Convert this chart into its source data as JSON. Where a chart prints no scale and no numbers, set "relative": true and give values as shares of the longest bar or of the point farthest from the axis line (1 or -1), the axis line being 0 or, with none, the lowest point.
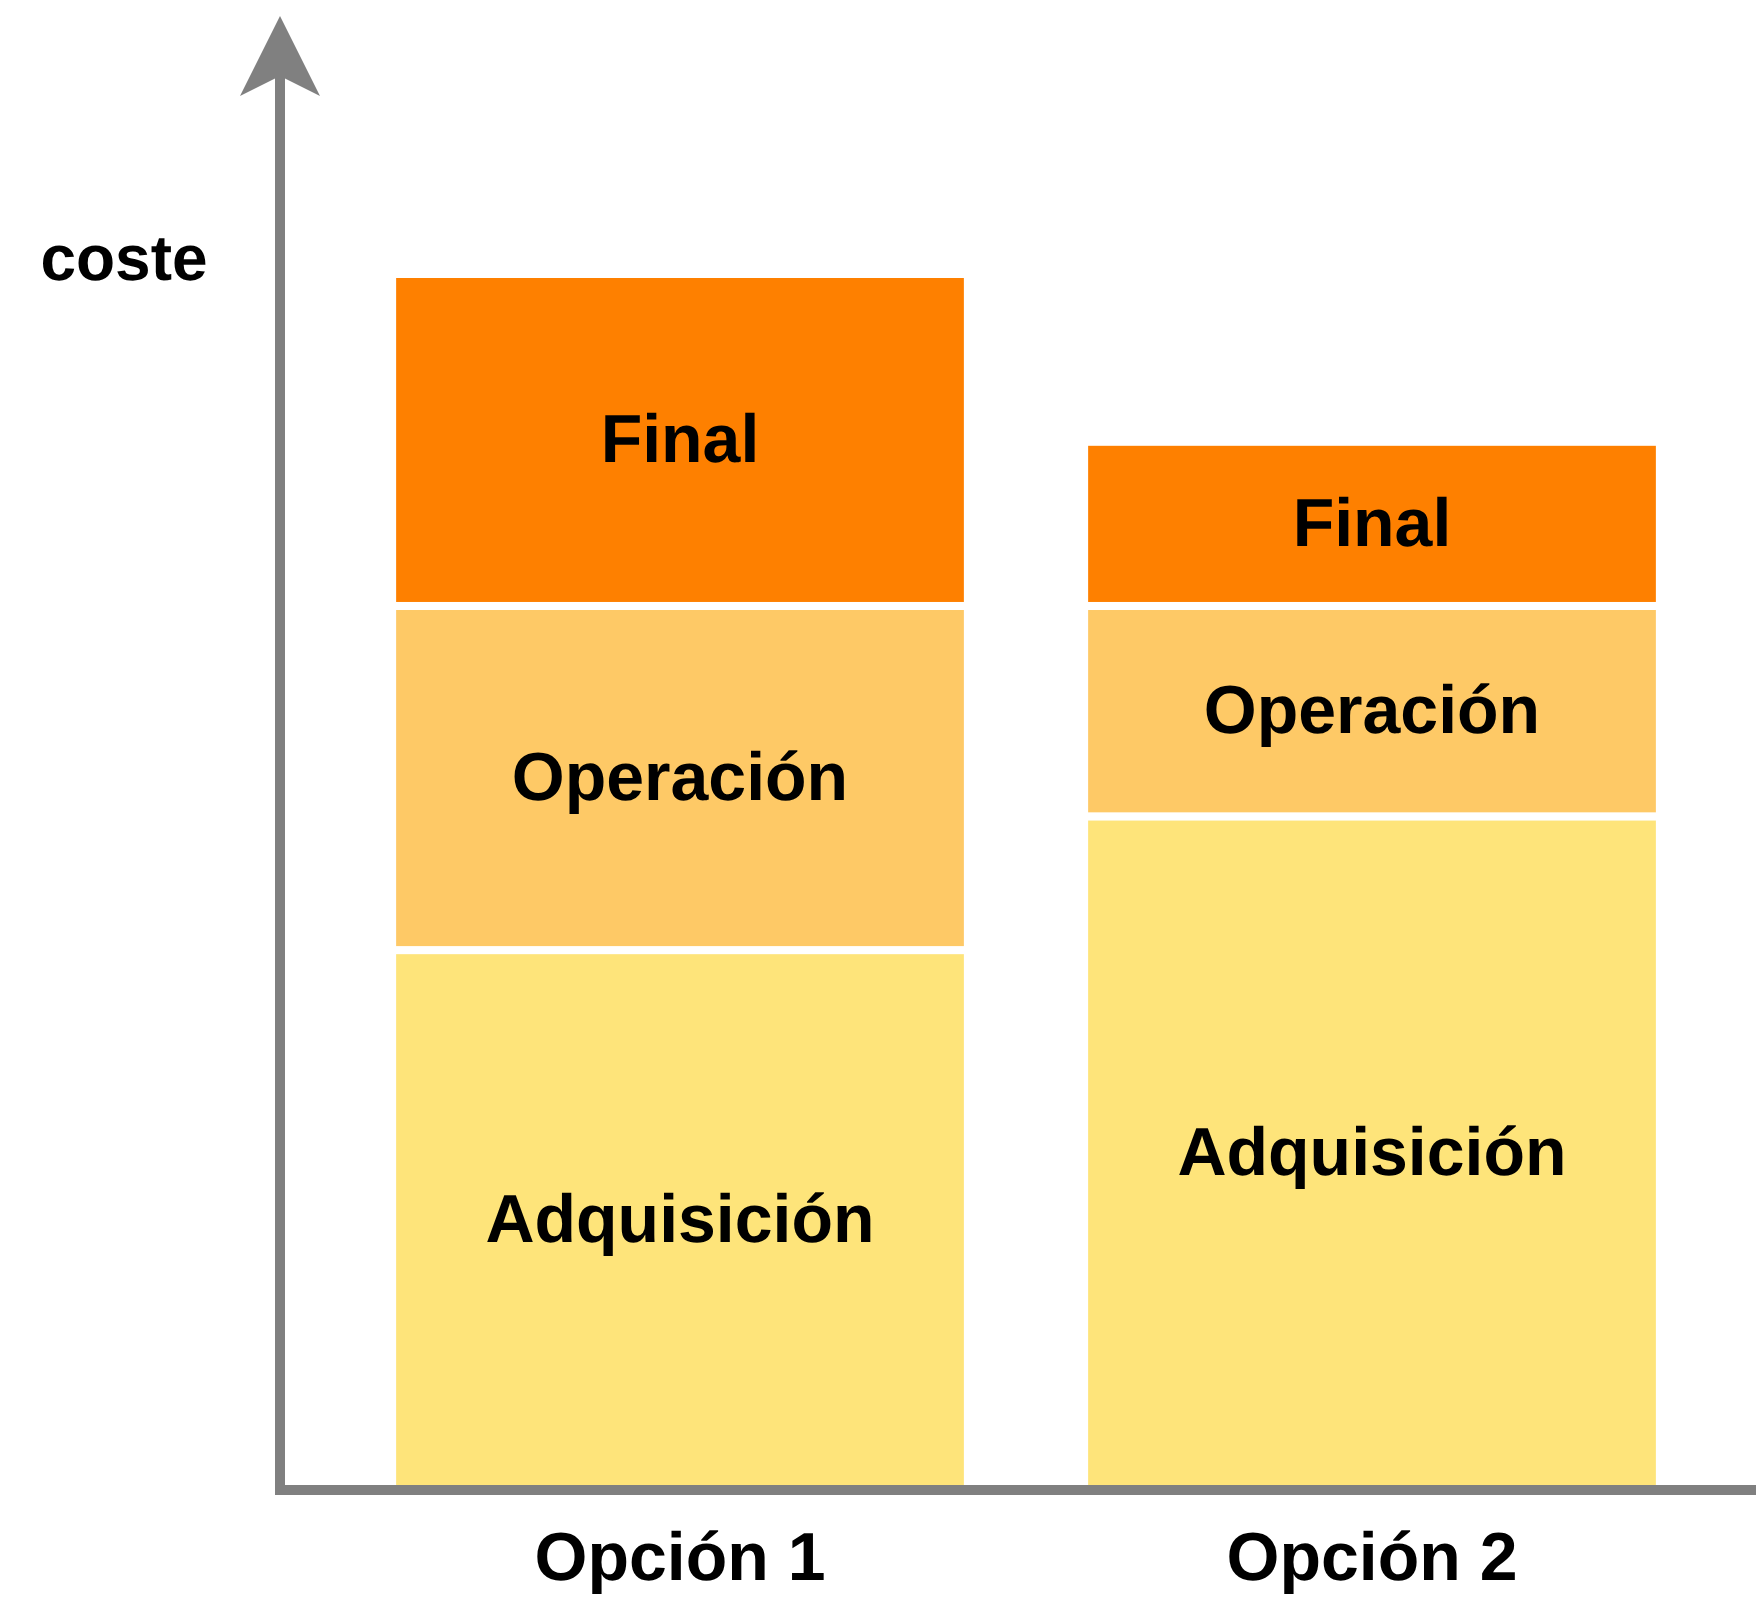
{
  "chart_data": {
    "type": "bar",
    "stacked": true,
    "relative": true,
    "ylabel": "coste",
    "categories": [
      "Opción 1",
      "Opción 2"
    ],
    "series": [
      {
        "name": "Adquisición",
        "color": "#fee47a",
        "values": [
          0.444,
          0.554
        ]
      },
      {
        "name": "Operación",
        "color": "#fec966",
        "values": [
          0.283,
          0.173
        ]
      },
      {
        "name": "Final",
        "color": "#fe8000",
        "values": [
          0.273,
          0.135
        ]
      }
    ],
    "legend": false,
    "grid": false
  }
}
